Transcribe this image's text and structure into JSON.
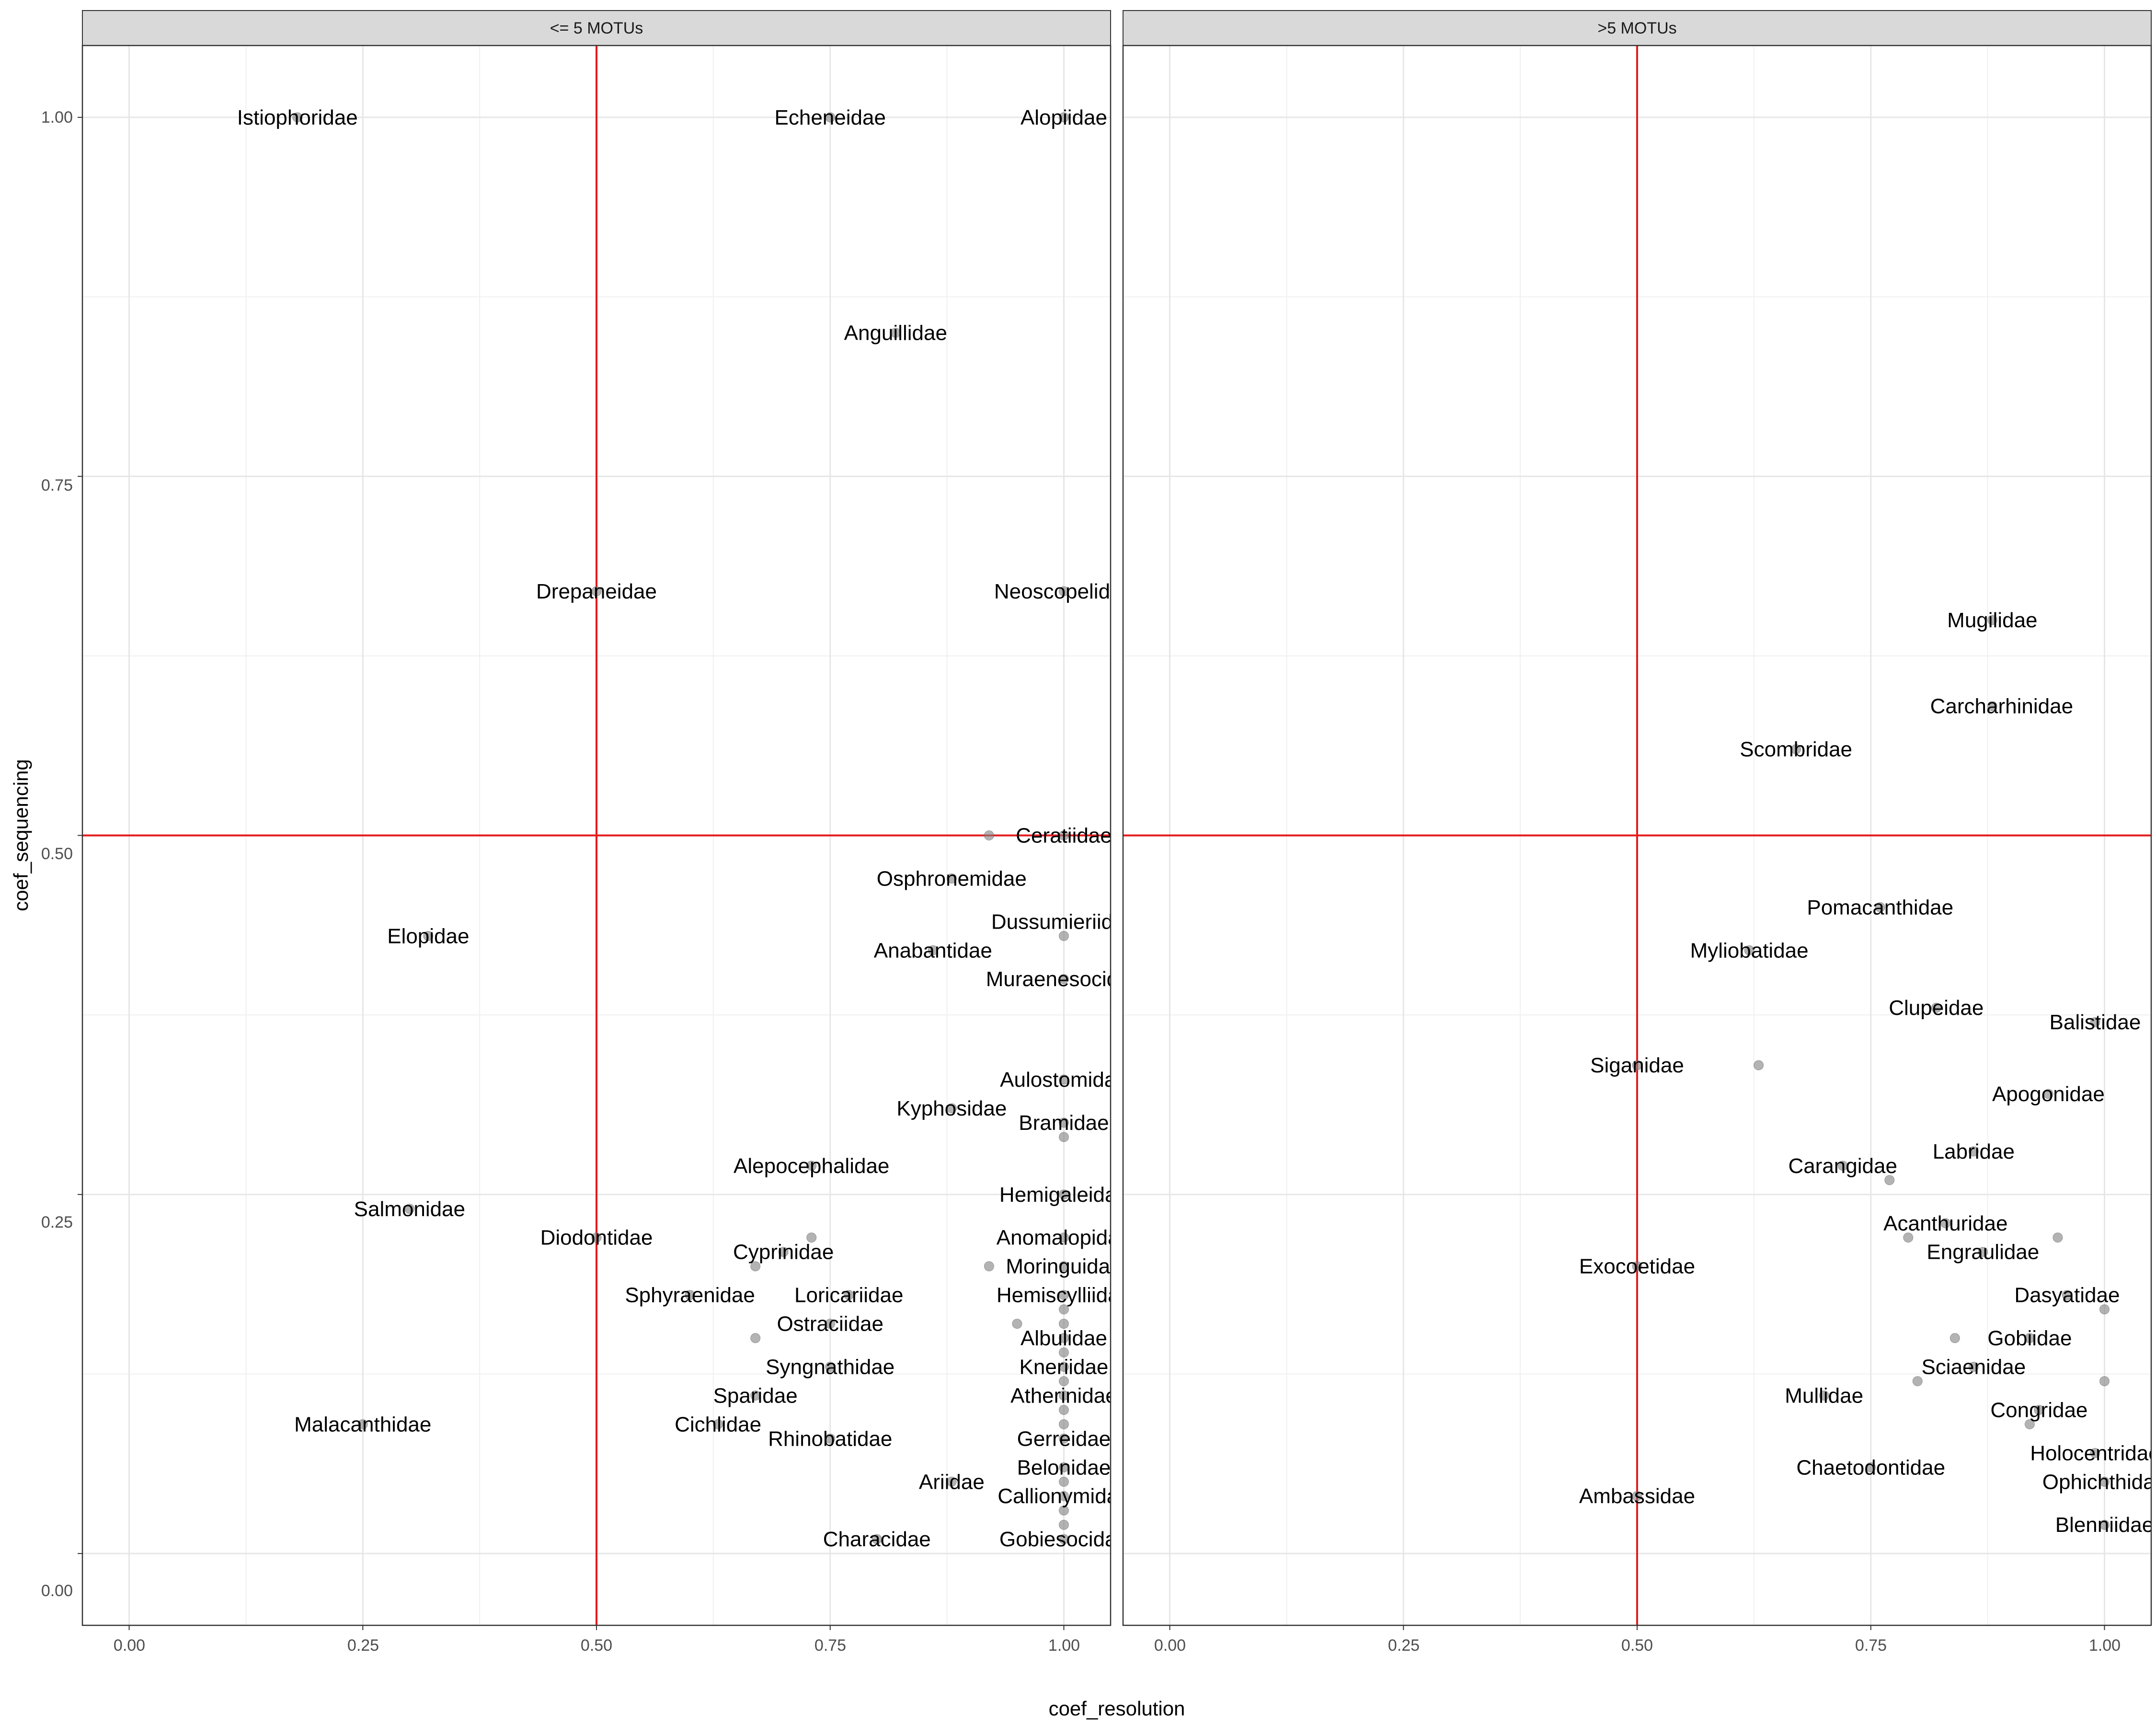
{
  "chart_data": {
    "type": "scatter",
    "xlabel": "coef_resolution",
    "ylabel": "coef_sequencing",
    "xlim": [
      -0.05,
      1.05
    ],
    "ylim": [
      -0.05,
      1.05
    ],
    "x_ticks": [
      0.0,
      0.25,
      0.5,
      0.75,
      1.0
    ],
    "x_tick_labels": [
      "0.00",
      "0.25",
      "0.50",
      "0.75",
      "1.00"
    ],
    "y_ticks": [
      0.0,
      0.25,
      0.5,
      0.75,
      1.0
    ],
    "y_tick_labels": [
      "0.00",
      "0.25",
      "0.50",
      "0.75",
      "1.00"
    ],
    "reference_lines": {
      "x": 0.5,
      "y": 0.5,
      "color": "#e41a1c"
    },
    "grid": true,
    "point_color": "#808080",
    "panels": [
      {
        "strip_label": "<= 5 MOTUs",
        "points": [
          {
            "x": 0.18,
            "y": 1.0
          },
          {
            "x": 0.75,
            "y": 1.0
          },
          {
            "x": 1.0,
            "y": 1.0
          },
          {
            "x": 0.82,
            "y": 0.85
          },
          {
            "x": 0.5,
            "y": 0.67
          },
          {
            "x": 1.0,
            "y": 0.67
          },
          {
            "x": 0.92,
            "y": 0.5
          },
          {
            "x": 1.0,
            "y": 0.5
          },
          {
            "x": 0.88,
            "y": 0.47
          },
          {
            "x": 0.32,
            "y": 0.43
          },
          {
            "x": 1.0,
            "y": 0.43
          },
          {
            "x": 0.86,
            "y": 0.42
          },
          {
            "x": 1.0,
            "y": 0.4
          },
          {
            "x": 1.0,
            "y": 0.33
          },
          {
            "x": 0.88,
            "y": 0.31
          },
          {
            "x": 1.0,
            "y": 0.3
          },
          {
            "x": 1.0,
            "y": 0.29
          },
          {
            "x": 0.73,
            "y": 0.27
          },
          {
            "x": 1.0,
            "y": 0.25
          },
          {
            "x": 0.3,
            "y": 0.24
          },
          {
            "x": 0.5,
            "y": 0.22
          },
          {
            "x": 0.73,
            "y": 0.22
          },
          {
            "x": 1.0,
            "y": 0.22
          },
          {
            "x": 0.7,
            "y": 0.21
          },
          {
            "x": 0.67,
            "y": 0.2
          },
          {
            "x": 0.92,
            "y": 0.2
          },
          {
            "x": 1.0,
            "y": 0.2
          },
          {
            "x": 0.6,
            "y": 0.18
          },
          {
            "x": 0.77,
            "y": 0.18
          },
          {
            "x": 1.0,
            "y": 0.18
          },
          {
            "x": 1.0,
            "y": 0.17
          },
          {
            "x": 0.75,
            "y": 0.16
          },
          {
            "x": 0.95,
            "y": 0.16
          },
          {
            "x": 1.0,
            "y": 0.16
          },
          {
            "x": 0.67,
            "y": 0.15
          },
          {
            "x": 1.0,
            "y": 0.15
          },
          {
            "x": 1.0,
            "y": 0.14
          },
          {
            "x": 0.75,
            "y": 0.13
          },
          {
            "x": 1.0,
            "y": 0.13
          },
          {
            "x": 1.0,
            "y": 0.12
          },
          {
            "x": 0.67,
            "y": 0.11
          },
          {
            "x": 1.0,
            "y": 0.11
          },
          {
            "x": 1.0,
            "y": 0.1
          },
          {
            "x": 0.25,
            "y": 0.09
          },
          {
            "x": 0.63,
            "y": 0.09
          },
          {
            "x": 1.0,
            "y": 0.09
          },
          {
            "x": 0.75,
            "y": 0.08
          },
          {
            "x": 1.0,
            "y": 0.08
          },
          {
            "x": 1.0,
            "y": 0.06
          },
          {
            "x": 0.88,
            "y": 0.05
          },
          {
            "x": 1.0,
            "y": 0.05
          },
          {
            "x": 1.0,
            "y": 0.04
          },
          {
            "x": 1.0,
            "y": 0.03
          },
          {
            "x": 1.0,
            "y": 0.02
          },
          {
            "x": 0.8,
            "y": 0.01
          },
          {
            "x": 1.0,
            "y": 0.01
          }
        ],
        "labels": [
          {
            "text": "Istiophoridae",
            "x": 0.18,
            "y": 1.0
          },
          {
            "text": "Echeneidae",
            "x": 0.75,
            "y": 1.0
          },
          {
            "text": "Alopiidae",
            "x": 1.0,
            "y": 1.0
          },
          {
            "text": "Anguillidae",
            "x": 0.82,
            "y": 0.85
          },
          {
            "text": "Drepaneidae",
            "x": 0.5,
            "y": 0.67
          },
          {
            "text": "Neoscopelidae",
            "x": 1.0,
            "y": 0.67
          },
          {
            "text": "Ceratiidae",
            "x": 1.0,
            "y": 0.5
          },
          {
            "text": "Osphronemidae",
            "x": 0.88,
            "y": 0.47
          },
          {
            "text": "Elopidae",
            "x": 0.32,
            "y": 0.43
          },
          {
            "text": "Dussumieriidae",
            "x": 1.0,
            "y": 0.44
          },
          {
            "text": "Anabantidae",
            "x": 0.86,
            "y": 0.42
          },
          {
            "text": "Muraenesocidae",
            "x": 1.0,
            "y": 0.4
          },
          {
            "text": "Aulostomidae",
            "x": 1.0,
            "y": 0.33
          },
          {
            "text": "Kyphosidae",
            "x": 0.88,
            "y": 0.31
          },
          {
            "text": "Bramidae",
            "x": 1.0,
            "y": 0.3
          },
          {
            "text": "Alepocephalidae",
            "x": 0.73,
            "y": 0.27
          },
          {
            "text": "Hemigaleidae",
            "x": 1.0,
            "y": 0.25
          },
          {
            "text": "Salmonidae",
            "x": 0.3,
            "y": 0.24
          },
          {
            "text": "Diodontidae",
            "x": 0.5,
            "y": 0.22
          },
          {
            "text": "Anomalopidae",
            "x": 1.0,
            "y": 0.22
          },
          {
            "text": "Cyprinidae",
            "x": 0.7,
            "y": 0.21
          },
          {
            "text": "Moringuidae",
            "x": 1.0,
            "y": 0.2
          },
          {
            "text": "Sphyraenidae",
            "x": 0.6,
            "y": 0.18
          },
          {
            "text": "Loricariidae",
            "x": 0.77,
            "y": 0.18
          },
          {
            "text": "Hemiscylliidae",
            "x": 1.0,
            "y": 0.18
          },
          {
            "text": "Ostraciidae",
            "x": 0.75,
            "y": 0.16
          },
          {
            "text": "Albulidae",
            "x": 1.0,
            "y": 0.15
          },
          {
            "text": "Syngnathidae",
            "x": 0.75,
            "y": 0.13
          },
          {
            "text": "Kneriidae",
            "x": 1.0,
            "y": 0.13
          },
          {
            "text": "Sparidae",
            "x": 0.67,
            "y": 0.11
          },
          {
            "text": "Atherinidae",
            "x": 1.0,
            "y": 0.11
          },
          {
            "text": "Malacanthidae",
            "x": 0.25,
            "y": 0.09
          },
          {
            "text": "Cichlidae",
            "x": 0.63,
            "y": 0.09
          },
          {
            "text": "Rhinobatidae",
            "x": 0.75,
            "y": 0.08
          },
          {
            "text": "Gerreidae",
            "x": 1.0,
            "y": 0.08
          },
          {
            "text": "Belonidae",
            "x": 1.0,
            "y": 0.06
          },
          {
            "text": "Ariidae",
            "x": 0.88,
            "y": 0.05
          },
          {
            "text": "Callionymidae",
            "x": 1.0,
            "y": 0.04
          },
          {
            "text": "Characidae",
            "x": 0.8,
            "y": 0.01
          },
          {
            "text": "Gobiesocidae",
            "x": 1.0,
            "y": 0.01
          }
        ]
      },
      {
        "strip_label": ">5 MOTUs",
        "points": [
          {
            "x": 0.88,
            "y": 0.65
          },
          {
            "x": 0.88,
            "y": 0.59
          },
          {
            "x": 0.67,
            "y": 0.56
          },
          {
            "x": 0.76,
            "y": 0.45
          },
          {
            "x": 0.62,
            "y": 0.42
          },
          {
            "x": 0.82,
            "y": 0.38
          },
          {
            "x": 0.99,
            "y": 0.37
          },
          {
            "x": 0.63,
            "y": 0.34
          },
          {
            "x": 0.5,
            "y": 0.34
          },
          {
            "x": 0.94,
            "y": 0.32
          },
          {
            "x": 0.86,
            "y": 0.28
          },
          {
            "x": 0.72,
            "y": 0.27
          },
          {
            "x": 0.77,
            "y": 0.26
          },
          {
            "x": 0.83,
            "y": 0.23
          },
          {
            "x": 0.79,
            "y": 0.22
          },
          {
            "x": 0.95,
            "y": 0.22
          },
          {
            "x": 0.87,
            "y": 0.21
          },
          {
            "x": 0.5,
            "y": 0.2
          },
          {
            "x": 0.96,
            "y": 0.18
          },
          {
            "x": 1.0,
            "y": 0.17
          },
          {
            "x": 0.84,
            "y": 0.15
          },
          {
            "x": 0.92,
            "y": 0.15
          },
          {
            "x": 0.86,
            "y": 0.13
          },
          {
            "x": 0.8,
            "y": 0.12
          },
          {
            "x": 1.0,
            "y": 0.12
          },
          {
            "x": 0.7,
            "y": 0.11
          },
          {
            "x": 0.93,
            "y": 0.1
          },
          {
            "x": 0.92,
            "y": 0.09
          },
          {
            "x": 0.99,
            "y": 0.07
          },
          {
            "x": 0.75,
            "y": 0.06
          },
          {
            "x": 1.0,
            "y": 0.05
          },
          {
            "x": 0.5,
            "y": 0.04
          },
          {
            "x": 1.0,
            "y": 0.02
          }
        ],
        "labels": [
          {
            "text": "Mugilidae",
            "x": 0.88,
            "y": 0.65
          },
          {
            "text": "Carcharhinidae",
            "x": 0.89,
            "y": 0.59
          },
          {
            "text": "Scombridae",
            "x": 0.67,
            "y": 0.56
          },
          {
            "text": "Pomacanthidae",
            "x": 0.76,
            "y": 0.45
          },
          {
            "text": "Myliobatidae",
            "x": 0.62,
            "y": 0.42
          },
          {
            "text": "Clupeidae",
            "x": 0.82,
            "y": 0.38
          },
          {
            "text": "Balistidae",
            "x": 0.99,
            "y": 0.37
          },
          {
            "text": "Siganidae",
            "x": 0.5,
            "y": 0.34
          },
          {
            "text": "Apogonidae",
            "x": 0.94,
            "y": 0.32
          },
          {
            "text": "Labridae",
            "x": 0.86,
            "y": 0.28
          },
          {
            "text": "Carangidae",
            "x": 0.72,
            "y": 0.27
          },
          {
            "text": "Acanthuridae",
            "x": 0.83,
            "y": 0.23
          },
          {
            "text": "Engraulidae",
            "x": 0.87,
            "y": 0.21
          },
          {
            "text": "Exocoetidae",
            "x": 0.5,
            "y": 0.2
          },
          {
            "text": "Dasyatidae",
            "x": 0.96,
            "y": 0.18
          },
          {
            "text": "Gobiidae",
            "x": 0.92,
            "y": 0.15
          },
          {
            "text": "Sciaenidae",
            "x": 0.86,
            "y": 0.13
          },
          {
            "text": "Mullidae",
            "x": 0.7,
            "y": 0.11
          },
          {
            "text": "Congridae",
            "x": 0.93,
            "y": 0.1
          },
          {
            "text": "Holocentridae",
            "x": 0.99,
            "y": 0.07
          },
          {
            "text": "Chaetodontidae",
            "x": 0.75,
            "y": 0.06
          },
          {
            "text": "Ophichthidae",
            "x": 1.0,
            "y": 0.05
          },
          {
            "text": "Ambassidae",
            "x": 0.5,
            "y": 0.04
          },
          {
            "text": "Blenniidae",
            "x": 1.0,
            "y": 0.02
          }
        ]
      }
    ]
  }
}
